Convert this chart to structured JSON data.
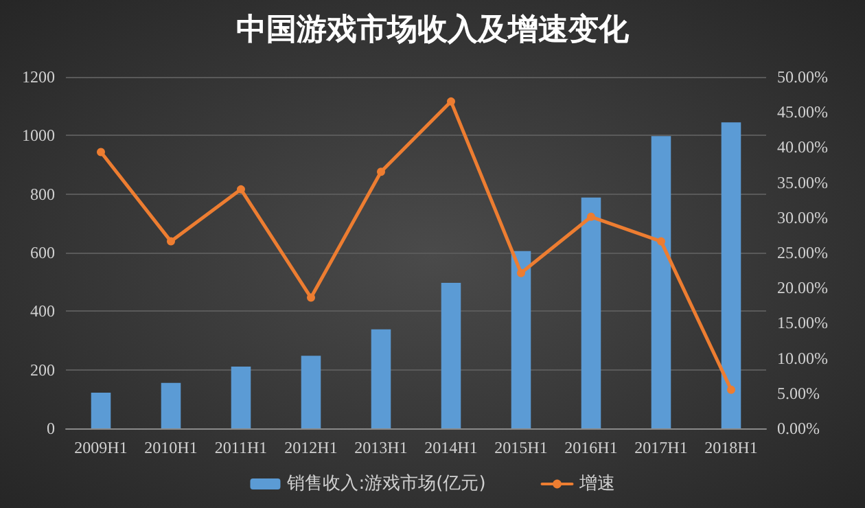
{
  "chart_data": {
    "type": "bar",
    "title": "中国游戏市场收入及增速变化",
    "categories": [
      "2009H1",
      "2010H1",
      "2011H1",
      "2012H1",
      "2013H1",
      "2014H1",
      "2015H1",
      "2016H1",
      "2017H1",
      "2018H1"
    ],
    "series": [
      {
        "name": "销售收入:游戏市场(亿元)",
        "color": "#5b9bd5",
        "values": [
          122,
          155,
          211,
          248,
          338,
          497,
          605,
          788,
          998,
          1045
        ]
      },
      {
        "name": "增速",
        "type": "line",
        "axis": "y2",
        "color": "#ed7d31",
        "values": [
          39.3,
          26.6,
          34.0,
          18.6,
          36.5,
          46.5,
          22.1,
          30.1,
          26.6,
          5.5
        ]
      }
    ],
    "ylim": [
      0,
      1200
    ],
    "yticks": [
      0,
      200,
      400,
      600,
      800,
      1000,
      1200
    ],
    "y2lim": [
      0,
      50
    ],
    "y2ticks": [
      {
        "value": 0,
        "label": "0.00%"
      },
      {
        "value": 5,
        "label": "5.00%"
      },
      {
        "value": 10,
        "label": "10.00%"
      },
      {
        "value": 15,
        "label": "15.00%"
      },
      {
        "value": 20,
        "label": "20.00%"
      },
      {
        "value": 25,
        "label": "25.00%"
      },
      {
        "value": 30,
        "label": "30.00%"
      },
      {
        "value": 35,
        "label": "35.00%"
      },
      {
        "value": 40,
        "label": "40.00%"
      },
      {
        "value": 45,
        "label": "45.00%"
      },
      {
        "value": 50,
        "label": "50.00%"
      }
    ],
    "grid": "y",
    "legend": "bottom",
    "marker": "circle",
    "line_style": "solid"
  }
}
